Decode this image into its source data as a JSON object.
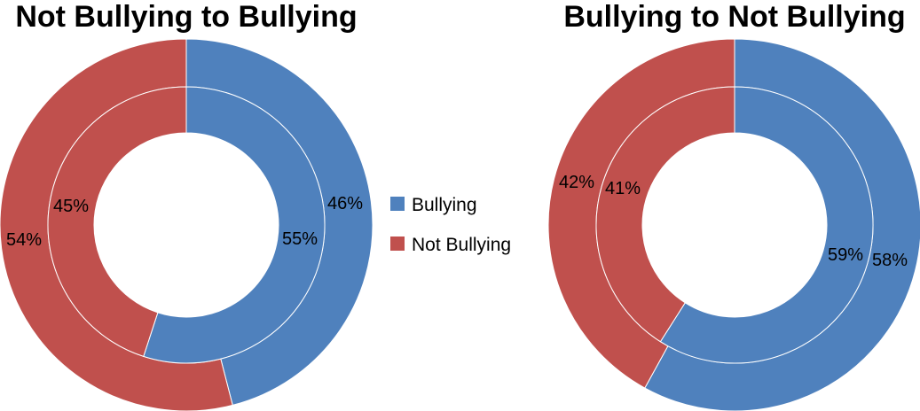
{
  "chart_data": [
    {
      "type": "donut",
      "title": "Not Bullying to Bullying",
      "rings": [
        {
          "ring": "outer",
          "values": [
            {
              "name": "Bullying",
              "value": 46
            },
            {
              "name": "Not Bullying",
              "value": 54
            }
          ]
        },
        {
          "ring": "inner",
          "values": [
            {
              "name": "Bullying",
              "value": 55
            },
            {
              "name": "Not Bullying",
              "value": 45
            }
          ]
        }
      ],
      "labels": {
        "outer": [
          "46%",
          "54%"
        ],
        "inner": [
          "55%",
          "45%"
        ]
      }
    },
    {
      "type": "donut",
      "title": "Bullying to Not Bullying",
      "rings": [
        {
          "ring": "outer",
          "values": [
            {
              "name": "Bullying",
              "value": 58
            },
            {
              "name": "Not Bullying",
              "value": 42
            }
          ]
        },
        {
          "ring": "inner",
          "values": [
            {
              "name": "Bullying",
              "value": 59
            },
            {
              "name": "Not Bullying",
              "value": 41
            }
          ]
        }
      ],
      "labels": {
        "outer": [
          "58%",
          "42%"
        ],
        "inner": [
          "59%",
          "41%"
        ]
      }
    }
  ],
  "legend": {
    "placement": "center",
    "items": [
      {
        "name": "Bullying",
        "color": "#4F81BD"
      },
      {
        "name": "Not Bullying",
        "color": "#C0504D"
      }
    ]
  },
  "colors": {
    "bullying": "#4F81BD",
    "not_bullying": "#C0504D",
    "separator": "#ffffff"
  }
}
